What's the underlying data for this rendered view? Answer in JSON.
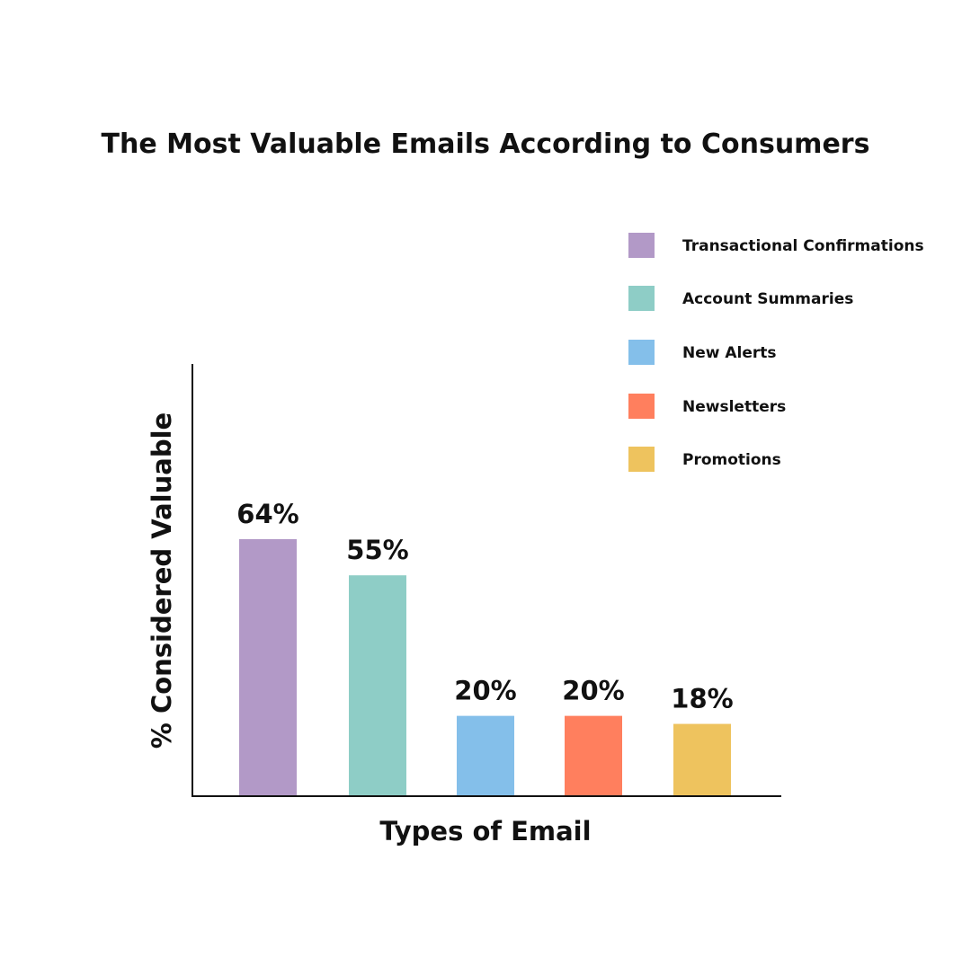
{
  "chart_data": {
    "type": "bar",
    "title": "The Most Valuable Emails According to Consumers",
    "xlabel": "Types of Email",
    "ylabel": "% Considered Valuable",
    "categories": [
      "Transactional Confirmations",
      "Account Summaries",
      "New Alerts",
      "Newsletters",
      "Promotions"
    ],
    "values": [
      64,
      55,
      20,
      20,
      18
    ],
    "data_labels": [
      "64%",
      "55%",
      "20%",
      "20%",
      "18%"
    ],
    "colors": [
      "#b299c7",
      "#8ecdc6",
      "#84bfea",
      "#ff7f5e",
      "#eec35e"
    ],
    "ylim": [
      0,
      100
    ],
    "grid": false,
    "legend_position": "top-right"
  }
}
